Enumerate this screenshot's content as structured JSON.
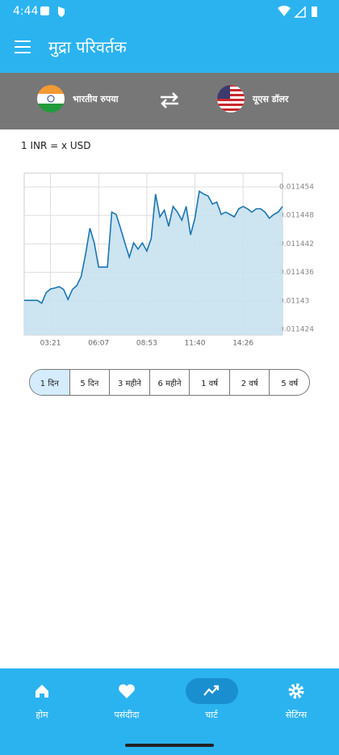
{
  "status": {
    "time": "4:44"
  },
  "app_bar": {
    "title": "मुद्रा परिवर्तक"
  },
  "currency": {
    "from": "भारतीय रुपया",
    "to": "यूएस डॉलर"
  },
  "chart_data": {
    "type": "area",
    "title": "1 INR = x USD",
    "categories": [
      null,
      null,
      null,
      null,
      null,
      null,
      "03:21",
      null,
      null,
      null,
      null,
      null,
      null,
      null,
      null,
      null,
      null,
      "06:07",
      null,
      null,
      null,
      null,
      null,
      null,
      null,
      null,
      null,
      null,
      "08:53",
      null,
      null,
      null,
      null,
      null,
      null,
      null,
      null,
      null,
      null,
      "11:40",
      null,
      null,
      null,
      null,
      null,
      null,
      null,
      null,
      null,
      null,
      "14:26",
      null,
      null,
      null,
      null,
      null,
      null,
      null,
      null,
      null
    ],
    "values": [
      0.0114301,
      0.0114301,
      0.0114301,
      0.0114301,
      0.0114295,
      0.0114317,
      0.0114325,
      0.0114327,
      0.011433,
      0.0114324,
      0.0114303,
      0.0114324,
      0.0114332,
      0.0114351,
      0.0114397,
      0.0114453,
      0.0114422,
      0.0114371,
      0.0114371,
      0.0114371,
      0.0114487,
      0.0114482,
      0.0114453,
      0.0114422,
      0.0114392,
      0.0114422,
      0.0114409,
      0.0114422,
      0.0114405,
      0.0114431,
      0.0114525,
      0.0114477,
      0.0114491,
      0.0114457,
      0.0114499,
      0.0114487,
      0.011447,
      0.0114499,
      0.0114439,
      0.0114474,
      0.0114531,
      0.0114525,
      0.0114521,
      0.0114504,
      0.0114508,
      0.0114482,
      0.0114487,
      0.0114482,
      0.0114477,
      0.0114494,
      0.0114499,
      0.0114494,
      0.0114487,
      0.0114494,
      0.0114494,
      0.0114487,
      0.0114474,
      0.0114482,
      0.0114487,
      0.0114499
    ],
    "color": "#1a76b0",
    "fill": "#c8e1f0",
    "ylim": [
      0.0114228,
      0.0114569
    ],
    "yticks": [
      0.011424,
      0.01143,
      0.011436,
      0.011442,
      0.011448,
      0.011454
    ],
    "grid": true
  },
  "periods": [
    "1 दिन",
    "5 दिन",
    "3 महीने",
    "6 महीने",
    "1 वर्ष",
    "2 वर्ष",
    "5 वर्ष"
  ],
  "nav": [
    "होम",
    "पसंदीदा",
    "चार्ट",
    "सेटिंग्स"
  ]
}
